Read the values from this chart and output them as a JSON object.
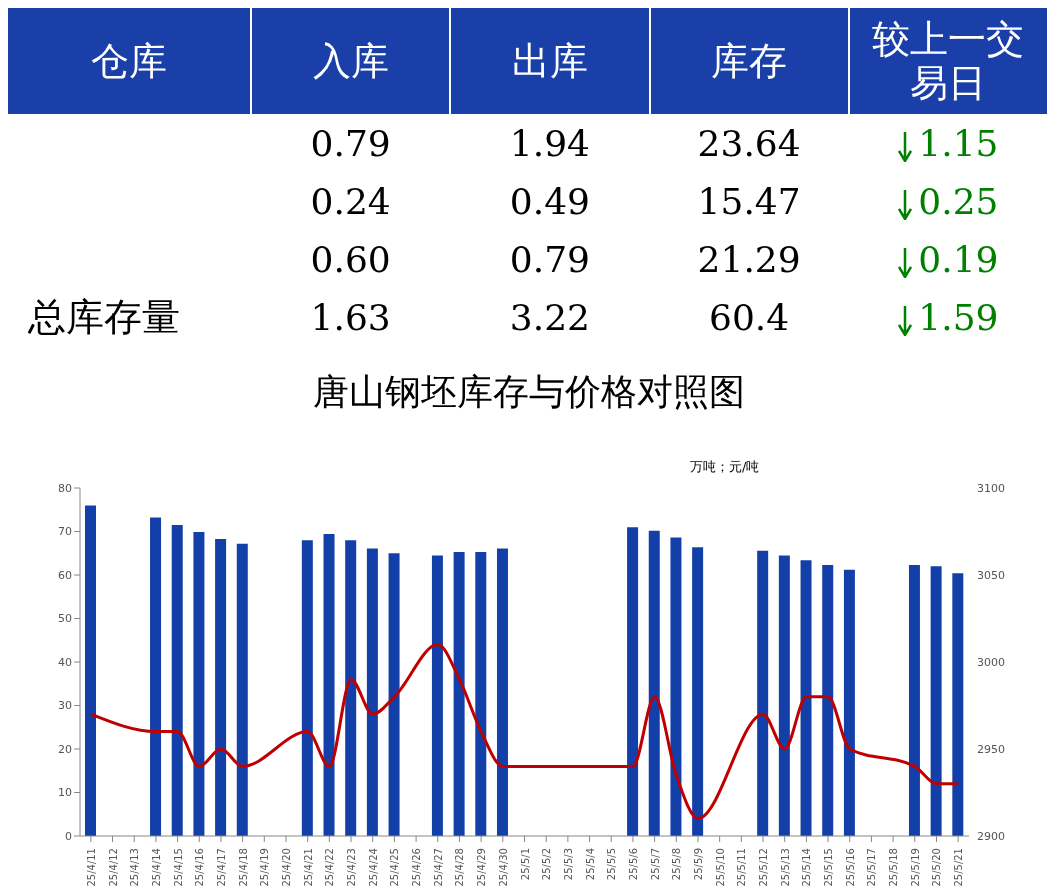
{
  "chart_data": [
    {
      "type": "other",
      "annotations": [
        "仓库",
        "入库",
        "出库",
        "库存",
        "较上一交易日",
        "0.79",
        "1.94",
        "23.64",
        "1.15",
        "0.24",
        "0.49",
        "15.47",
        "0.25",
        "0.60",
        "0.79",
        "21.29",
        "0.19",
        "总库存量",
        "1.63",
        "3.22",
        "60.4",
        "1.59"
      ]
    },
    {
      "type": "bar",
      "title": "唐山钢坯库存与价格对照图",
      "annotations": [
        "万吨；元/吨"
      ],
      "categories": [
        "25/4/11",
        "25/4/12",
        "25/4/13",
        "25/4/14",
        "25/4/15",
        "25/4/16",
        "25/4/17",
        "25/4/18",
        "25/4/19",
        "25/4/20",
        "25/4/21",
        "25/4/22",
        "25/4/23",
        "25/4/24",
        "25/4/25",
        "25/4/26",
        "25/4/27",
        "25/4/28",
        "25/4/29",
        "25/4/30",
        "25/5/1",
        "25/5/2",
        "25/5/3",
        "25/5/4",
        "25/5/5",
        "25/5/6",
        "25/5/7",
        "25/5/8",
        "25/5/9",
        "25/5/10",
        "25/5/11",
        "25/5/12",
        "25/5/13",
        "25/5/14",
        "25/5/15",
        "25/5/16",
        "25/5/17",
        "25/5/18",
        "25/5/19",
        "25/5/20",
        "25/5/21"
      ],
      "series": [
        {
          "type": "bar",
          "color": "#1340a8",
          "values": [
            76,
            null,
            null,
            73.2,
            71.5,
            69.9,
            68.3,
            67.2,
            null,
            null,
            68.0,
            69.4,
            68.0,
            66.1,
            65.0,
            null,
            64.5,
            65.3,
            65.3,
            66.1,
            null,
            null,
            null,
            null,
            null,
            71.0,
            70.2,
            68.6,
            66.4,
            null,
            null,
            65.6,
            64.5,
            63.4,
            62.3,
            61.2,
            null,
            null,
            62.3,
            62.0,
            60.4
          ]
        },
        {
          "type": "line",
          "axis": "y2",
          "color": "#c00000",
          "values": [
            2970,
            null,
            null,
            2960,
            2960,
            2940,
            2950,
            2940,
            null,
            null,
            2960,
            2940,
            2990,
            2970,
            2980,
            null,
            3010,
            2990,
            2960,
            2940,
            null,
            null,
            null,
            null,
            null,
            2940,
            2980,
            2935,
            2910,
            null,
            null,
            2970,
            2950,
            2980,
            2980,
            2950,
            null,
            null,
            2940,
            2930,
            2930
          ]
        }
      ],
      "ylim": [
        0,
        80
      ],
      "yticks": [
        0,
        10,
        20,
        30,
        40,
        50,
        60,
        70,
        80
      ],
      "y2lim": [
        2900,
        3100
      ],
      "y2ticks": [
        2900,
        2950,
        3000,
        3050,
        3100
      ],
      "marker": "none"
    }
  ]
}
